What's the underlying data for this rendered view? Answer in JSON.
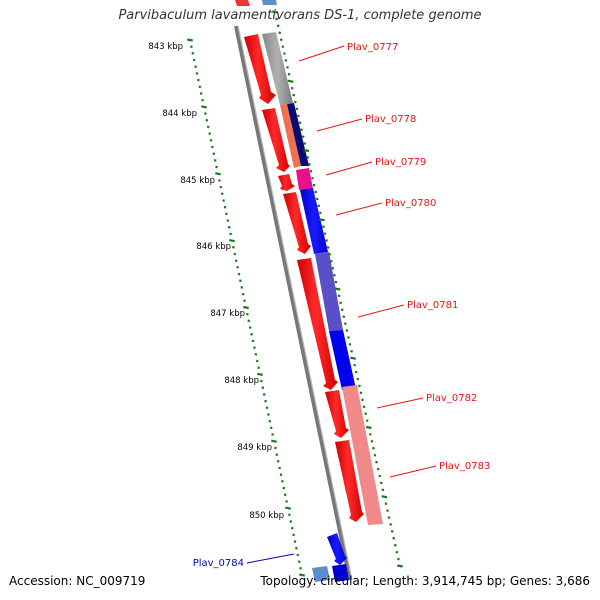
{
  "title": "Parvibaculum lavamentivorans DS-1, complete genome",
  "accession": "Accession: NC_009719",
  "summary": "Topology: circular; Length: 3,914,745 bp; Genes: 3,686",
  "ruler": {
    "labels": [
      "843 kbp",
      "844 kbp",
      "845 kbp",
      "846 kbp",
      "847 kbp",
      "848 kbp",
      "849 kbp",
      "850 kbp"
    ],
    "color": "#1a7a1a"
  },
  "genes": [
    {
      "label": "Plav_0777",
      "color": "#ee1111"
    },
    {
      "label": "Plav_0778",
      "color": "#ee1111"
    },
    {
      "label": "Plav_0779",
      "color": "#ee1111"
    },
    {
      "label": "Plav_0780",
      "color": "#ee1111"
    },
    {
      "label": "Plav_0781",
      "color": "#ee1111"
    },
    {
      "label": "Plav_0782",
      "color": "#ee1111"
    },
    {
      "label": "Plav_0783",
      "color": "#ee1111"
    },
    {
      "label": "Plav_0784",
      "color": "#0000cc"
    }
  ]
}
